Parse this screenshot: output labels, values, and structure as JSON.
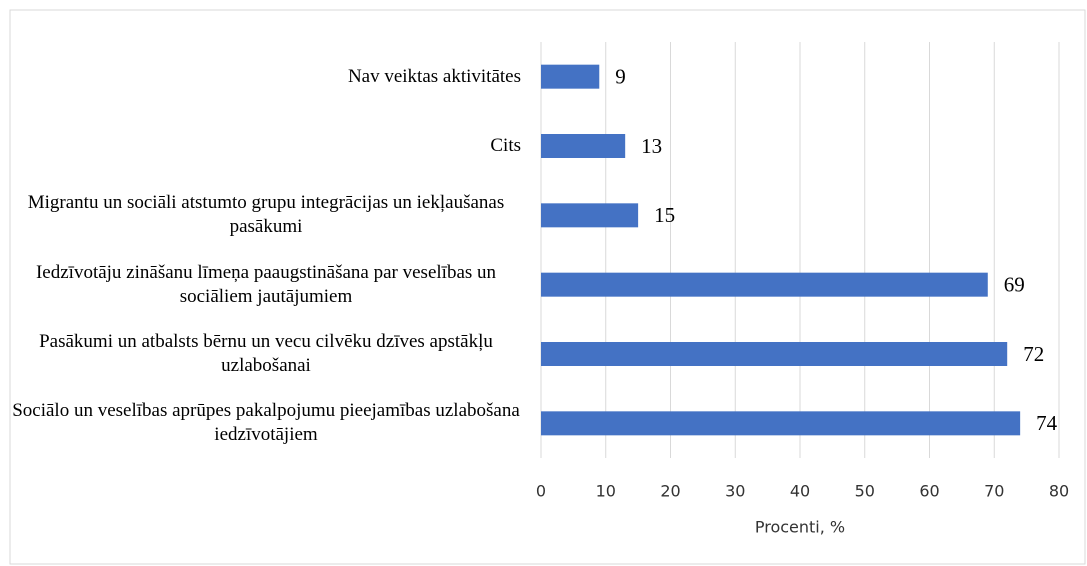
{
  "chart_data": {
    "type": "barh",
    "categories": [
      "Nav veiktas aktivitātes",
      "Cits",
      "Migrantu un sociāli atstumto grupu integrācijas un iekļaušanas pasākumi",
      "Iedzīvotāju zināšanu līmeņa paaugstināšana par veselības un sociāliem jautājumiem",
      "Pasākumi un atbalsts bērnu un vecu cilvēku dzīves apstākļu uzlabošanai",
      "Sociālo un veselības aprūpes pakalpojumu pieejamības uzlabošana iedzīvotājiem"
    ],
    "values": [
      9,
      13,
      15,
      69,
      72,
      74
    ],
    "color": "#4472c4",
    "xlabel": "Procenti, %",
    "xlim": [
      0,
      80
    ],
    "xticks": [
      0,
      10,
      20,
      30,
      40,
      50,
      60,
      70,
      80
    ],
    "grid": true
  }
}
